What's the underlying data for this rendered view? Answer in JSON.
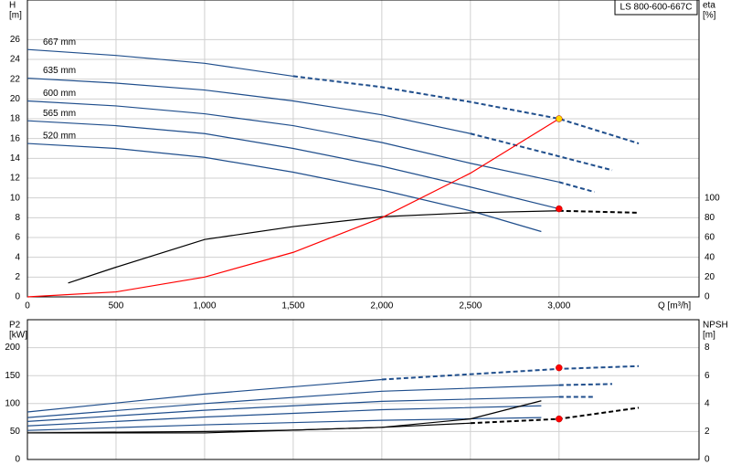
{
  "chart_data": [
    {
      "type": "line",
      "title": "LS 800-600-667C",
      "y_label": "H",
      "y_unit": "[m]",
      "y2_label": "eta",
      "y2_unit": "[%]",
      "x_label": "Q [m³/h]",
      "xlim": [
        0,
        3790
      ],
      "xticks": [
        0,
        500,
        {
          "value": 1000,
          "label": "1,000"
        },
        {
          "value": 1500,
          "label": "1,500"
        },
        {
          "value": 2000,
          "label": "2,000"
        },
        {
          "value": 2500,
          "label": "2,500"
        },
        {
          "value": 3000,
          "label": "3,000"
        }
      ],
      "ylim": [
        0,
        30
      ],
      "yticks": [
        0,
        2,
        4,
        6,
        8,
        10,
        12,
        14,
        16,
        18,
        20,
        22,
        24,
        26
      ],
      "y2lim": [
        0,
        300
      ],
      "y2ticks": [
        0,
        20,
        40,
        60,
        80,
        100
      ],
      "grid": true,
      "series": [
        {
          "name": "667 mm",
          "color": "#1f4e8c",
          "dashed_from": 1500,
          "x": [
            0,
            500,
            1000,
            1500,
            2000,
            2500,
            3000,
            3450
          ],
          "values": [
            25.0,
            24.4,
            23.6,
            22.3,
            21.2,
            19.7,
            18.0,
            15.5
          ]
        },
        {
          "name": "635 mm",
          "color": "#1f4e8c",
          "dashed_from": 2500,
          "x": [
            0,
            500,
            1000,
            1500,
            2000,
            2500,
            3000,
            3300
          ],
          "values": [
            22.1,
            21.6,
            20.9,
            19.8,
            18.4,
            16.5,
            14.2,
            12.8
          ]
        },
        {
          "name": "600 mm",
          "color": "#1f4e8c",
          "dashed_from": 3000,
          "x": [
            0,
            500,
            1000,
            1500,
            2000,
            2500,
            3000,
            3200
          ],
          "values": [
            19.8,
            19.3,
            18.5,
            17.3,
            15.6,
            13.5,
            11.6,
            10.6
          ]
        },
        {
          "name": "565 mm",
          "color": "#1f4e8c",
          "x": [
            0,
            500,
            1000,
            1500,
            2000,
            2500,
            3000
          ],
          "values": [
            17.8,
            17.3,
            16.5,
            15.0,
            13.2,
            11.1,
            8.9
          ]
        },
        {
          "name": "520 mm",
          "color": "#1f4e8c",
          "x": [
            0,
            500,
            1000,
            1500,
            2000,
            2500,
            2900
          ],
          "values": [
            15.5,
            15.0,
            14.1,
            12.6,
            10.8,
            8.7,
            6.6
          ]
        },
        {
          "color": "#000000",
          "axis": "y2",
          "dashed_from": 3000,
          "x": [
            230,
            500,
            1000,
            1500,
            2000,
            2500,
            3000,
            3450
          ],
          "values": [
            14,
            30,
            58,
            71,
            81,
            85,
            87,
            85
          ]
        },
        {
          "color": "#ff0000",
          "x": [
            0,
            500,
            1000,
            1500,
            2000,
            2500,
            3000
          ],
          "values": [
            0,
            0.5,
            2,
            4.5,
            8,
            12.5,
            18
          ]
        }
      ],
      "points": [
        {
          "x": 3000,
          "y": 18,
          "color": "#ffd700"
        },
        {
          "x": 3000,
          "y": 8.9,
          "color": "#ff0000"
        }
      ]
    },
    {
      "type": "line",
      "y_label": "P2",
      "y_unit": "[kW]",
      "y2_label": "NPSH",
      "y2_unit": "[m]",
      "xlim": [
        0,
        3790
      ],
      "ylim": [
        0,
        250
      ],
      "yticks": [
        0,
        50,
        100,
        150,
        200
      ],
      "y2lim": [
        0,
        10
      ],
      "y2ticks": [
        0,
        2,
        4,
        6,
        8
      ],
      "grid": true,
      "series": [
        {
          "color": "#1f4e8c",
          "dashed_from": 1500,
          "x": [
            0,
            1000,
            2000,
            3000,
            3450
          ],
          "values": [
            85,
            117,
            143,
            162,
            167
          ]
        },
        {
          "color": "#1f4e8c",
          "dashed_from": 2500,
          "x": [
            0,
            1000,
            2000,
            3000,
            3300
          ],
          "values": [
            75,
            100,
            122,
            133,
            135
          ]
        },
        {
          "color": "#1f4e8c",
          "dashed_from": 3000,
          "x": [
            0,
            1000,
            2000,
            3000,
            3200
          ],
          "values": [
            68,
            88,
            104,
            112,
            112
          ]
        },
        {
          "color": "#1f4e8c",
          "x": [
            0,
            1000,
            2000,
            2900
          ],
          "values": [
            60,
            76,
            89,
            96
          ]
        },
        {
          "color": "#1f4e8c",
          "x": [
            0,
            1000,
            2000,
            2900
          ],
          "values": [
            52,
            62,
            70,
            75
          ]
        },
        {
          "color": "#000000",
          "axis": "y2",
          "dashed_from": 2500,
          "x": [
            0,
            1000,
            1500,
            2000,
            2500,
            3000,
            3450
          ],
          "values": [
            1.9,
            2.0,
            2.1,
            2.3,
            2.6,
            2.9,
            3.7
          ]
        },
        {
          "color": "#000000",
          "axis": "y2",
          "x": [
            0,
            1000,
            2000,
            2500,
            2900
          ],
          "values": [
            1.9,
            1.9,
            2.3,
            2.9,
            4.2
          ]
        }
      ],
      "points": [
        {
          "x": 3000,
          "y": 164,
          "color": "#ff0000"
        },
        {
          "x": 3000,
          "y": 2.9,
          "axis": "y2",
          "color": "#ff0000"
        }
      ]
    }
  ]
}
